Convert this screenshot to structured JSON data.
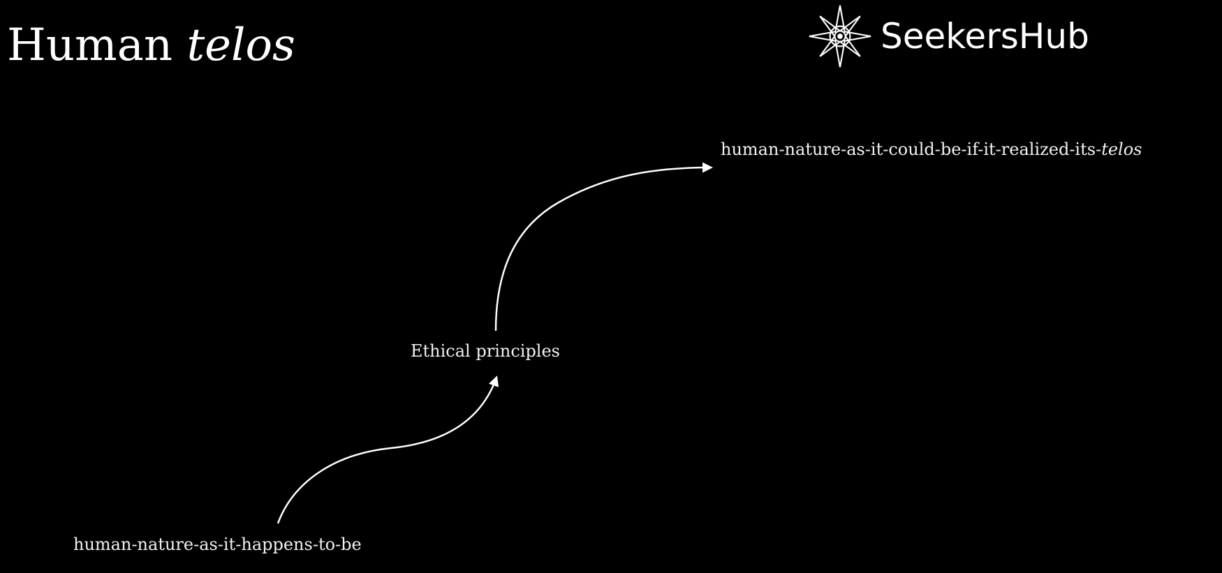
{
  "slide": {
    "title": {
      "plain": "Human",
      "italic": "telos"
    },
    "brand": {
      "name": "SeekersHub",
      "icon": "compass-star-icon"
    }
  },
  "diagram": {
    "nodes": {
      "start": "human-nature-as-it-happens-to-be",
      "middle": "Ethical principles",
      "end": {
        "plain": "human-nature-as-it-could-be-if-it-realized-its-",
        "italic": "telos"
      }
    },
    "arrows": [
      {
        "from": "start",
        "to": "middle"
      },
      {
        "from": "middle",
        "to": "end"
      }
    ],
    "colors": {
      "background": "#000000",
      "foreground": "#ffffff"
    }
  }
}
